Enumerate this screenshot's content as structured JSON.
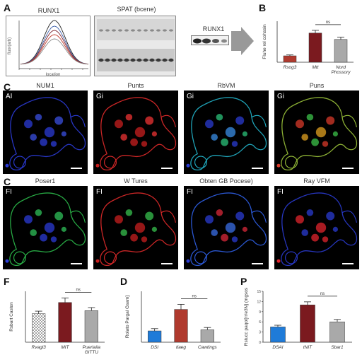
{
  "panel_labels": {
    "a": "A",
    "b": "B",
    "c1": "C",
    "c2": "C",
    "f": "F",
    "d": "D",
    "p": "P"
  },
  "panel_a": {
    "line_title": "RUNX1",
    "line_ylabel": "fluor(arb)",
    "line_xlabel": "location",
    "blot_title": "SPAT (bcene)",
    "blot_label": "RUNX1",
    "line_colors": [
      "#222222",
      "#3b5ea8",
      "#7a1f2b",
      "#c0392b",
      "#888888"
    ]
  },
  "micro_row1": {
    "panels": [
      {
        "title": "NUM1",
        "tag": "AI"
      },
      {
        "title": "Punts",
        "tag": "Gi"
      },
      {
        "title": "RbVM",
        "tag": "Gi"
      },
      {
        "title": "Puns",
        "tag": "Gi"
      }
    ]
  },
  "micro_row2": {
    "panels": [
      {
        "title": "Poser1",
        "tag": "FI"
      },
      {
        "title": "W Tures",
        "tag": "FI"
      },
      {
        "title": "Obten GB Pocese)",
        "tag": "FI"
      },
      {
        "title": "Ray VFM",
        "tag": "FI"
      }
    ]
  },
  "colors": {
    "dark_red": "#7b1a1f",
    "red": "#b03a2e",
    "gray": "#a9a9a9",
    "blue": "#1f7bd8"
  },
  "chart_data": [
    {
      "panel": "B",
      "type": "bar",
      "categories": [
        "Rsog3",
        "Mtt",
        "Nord Phossory"
      ],
      "values": [
        0.7,
        3.2,
        2.5
      ],
      "errors": [
        0.1,
        0.3,
        0.25
      ],
      "colors": [
        "#b03a2e",
        "#7b1a1f",
        "#a9a9a9"
      ],
      "ylabel": "Fluhe rel cohssin",
      "ylim": [
        0,
        4.5
      ],
      "sig_label": "ns"
    },
    {
      "panel": "F",
      "type": "bar",
      "categories": [
        "Rvagl3",
        "MIT",
        "Puerlaiia GITTU"
      ],
      "values": [
        2.8,
        3.9,
        3.1
      ],
      "errors": [
        0.25,
        0.45,
        0.3
      ],
      "colors": [
        "#ffffff",
        "#7b1a1f",
        "#a9a9a9"
      ],
      "hatched": [
        true,
        false,
        false
      ],
      "ylabel": "Rsbart Caston",
      "ylim": [
        0,
        5
      ],
      "sig_label": "ns"
    },
    {
      "panel": "D",
      "type": "bar",
      "categories": [
        "DSI",
        "tlaeg",
        "Cawtings"
      ],
      "values": [
        1.0,
        2.9,
        1.1
      ],
      "errors": [
        0.2,
        0.45,
        0.2
      ],
      "colors": [
        "#1f7bd8",
        "#b03a2e",
        "#a9a9a9"
      ],
      "ylabel": "Rolato Pargal Gsam]",
      "ylim": [
        0,
        4.5
      ],
      "sig_label": "ns"
    },
    {
      "panel": "P",
      "type": "bar",
      "categories": [
        "DSAI",
        "tNIT",
        "Sbar1"
      ],
      "values": [
        4.5,
        11.0,
        6.0
      ],
      "errors": [
        0.5,
        0.9,
        0.7
      ],
      "colors": [
        "#1f7bd8",
        "#7b1a1f",
        "#a9a9a9"
      ],
      "ylabel": "Rstucc paqol[rr/e3N] (mgsos",
      "ylim": [
        0,
        15
      ],
      "yticks": [
        "0",
        "3",
        "6",
        "9",
        "12",
        "15"
      ],
      "sig_label": "ns"
    }
  ]
}
